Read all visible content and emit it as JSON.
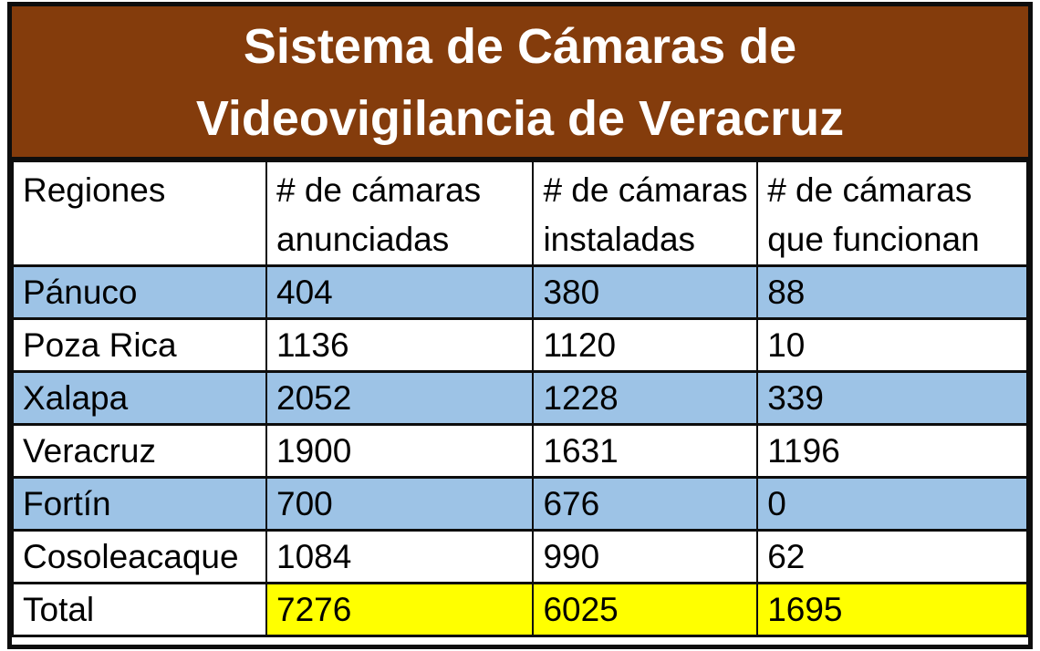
{
  "title": {
    "full": "Sistema de Cámaras de Videovigilancia de Veracruz",
    "line1": "Sistema de Cámaras de",
    "line2": "Videovigilancia de Veracruz"
  },
  "colors": {
    "title_bg": "#843C0C",
    "title_text": "#FFFFFF",
    "alt_row_bg": "#9DC3E6",
    "total_highlight_bg": "#FFFF00",
    "border": "#0D0D0D",
    "text": "#000000",
    "plain_row_bg": "#FFFFFF"
  },
  "chart_data": {
    "type": "table",
    "title": "Sistema de Cámaras de Videovigilancia de Veracruz",
    "columns": [
      "Regiones",
      "# de cámaras anunciadas",
      "# de cámaras instaladas",
      "# de cámaras que funcionan"
    ],
    "rows": [
      [
        "Pánuco",
        404,
        380,
        88
      ],
      [
        "Poza Rica",
        1136,
        1120,
        10
      ],
      [
        "Xalapa",
        2052,
        1228,
        339
      ],
      [
        "Veracruz",
        1900,
        1631,
        1196
      ],
      [
        "Fortín",
        700,
        676,
        0
      ],
      [
        "Cosoleacaque",
        1084,
        990,
        62
      ],
      [
        "Total",
        7276,
        6025,
        1695
      ]
    ],
    "row_styles": [
      "blue",
      "white",
      "blue",
      "white",
      "blue",
      "white",
      "total"
    ],
    "layout": {
      "total_row_highlight": "yellow numbers only",
      "header_rows": 1
    }
  }
}
